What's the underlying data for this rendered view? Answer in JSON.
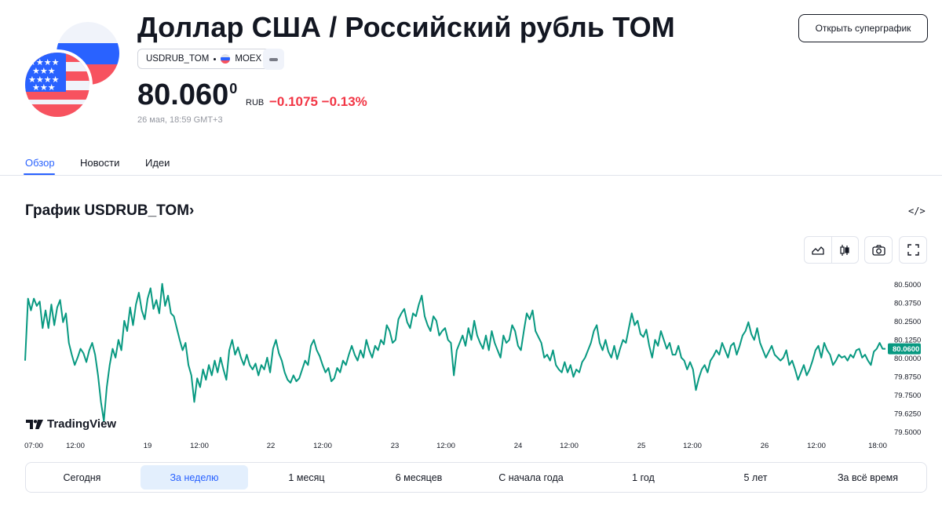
{
  "header": {
    "title": "Доллар США / Российский рубль TOM",
    "symbol": "USDRUB_TOM",
    "exchange": "MOEX",
    "flags": [
      "us-flag-icon",
      "ru-flag-icon"
    ],
    "price_main": "80.060",
    "price_sup": "0",
    "currency": "RUB",
    "change": "−0.1075",
    "change_pct": "−0.13%",
    "change_color": "#f23645",
    "timestamp": "26 мая, 18:59 GMT+3",
    "open_superchart_label": "Открыть суперграфик"
  },
  "tabs": [
    {
      "label": "Обзор",
      "active": true
    },
    {
      "label": "Новости",
      "active": false
    },
    {
      "label": "Идеи",
      "active": false
    }
  ],
  "chart_section": {
    "title": "График USDRUB_TOM›",
    "embed_icon": "</>",
    "tools": [
      "area-chart-icon",
      "candles-icon",
      "camera-icon",
      "fullscreen-icon"
    ],
    "logo_text": "TradingView",
    "range_buttons": [
      {
        "label": "Сегодня",
        "active": false
      },
      {
        "label": "За неделю",
        "active": true
      },
      {
        "label": "1 месяц",
        "active": false
      },
      {
        "label": "6 месяцев",
        "active": false
      },
      {
        "label": "С начала года",
        "active": false
      },
      {
        "label": "1 год",
        "active": false
      },
      {
        "label": "5 лет",
        "active": false
      },
      {
        "label": "За всё время",
        "active": false
      }
    ]
  },
  "chart_data": {
    "type": "line",
    "color": "#089981",
    "x_labels": [
      "07:00",
      "12:00",
      "19",
      "12:00",
      "22",
      "12:00",
      "23",
      "12:00",
      "24",
      "12:00",
      "25",
      "12:00",
      "26",
      "12:00",
      "18:00"
    ],
    "y_ticks": [
      "80.5000",
      "80.3750",
      "80.2500",
      "80.1250",
      "80.0000",
      "79.8750",
      "79.7500",
      "79.6250",
      "79.5000"
    ],
    "ylim": [
      79.5,
      80.52
    ],
    "last_value_label": "80.0600",
    "last_value": 80.06,
    "values": [
      79.98,
      80.4,
      80.32,
      80.4,
      80.35,
      80.38,
      80.2,
      80.32,
      80.2,
      80.36,
      80.22,
      80.34,
      80.39,
      80.24,
      80.3,
      80.1,
      80.02,
      79.95,
      80.0,
      80.06,
      80.03,
      79.97,
      80.05,
      80.1,
      80.02,
      79.88,
      79.7,
      79.57,
      79.8,
      79.95,
      80.06,
      80.0,
      80.12,
      80.05,
      80.25,
      80.18,
      80.34,
      80.22,
      80.36,
      80.44,
      80.32,
      80.26,
      80.4,
      80.47,
      80.33,
      80.39,
      80.3,
      80.5,
      80.35,
      80.42,
      80.3,
      80.28,
      80.2,
      80.12,
      80.05,
      80.1,
      79.95,
      79.88,
      79.7,
      79.86,
      79.8,
      79.92,
      79.85,
      79.95,
      79.88,
      79.98,
      79.9,
      80.0,
      79.92,
      79.85,
      80.05,
      80.12,
      80.02,
      80.07,
      80.0,
      79.95,
      80.02,
      79.95,
      79.92,
      79.96,
      79.88,
      79.95,
      79.92,
      80.0,
      79.9,
      80.06,
      80.12,
      80.03,
      79.98,
      79.9,
      79.85,
      79.83,
      79.88,
      79.84,
      79.86,
      79.92,
      79.98,
      79.95,
      80.08,
      80.12,
      80.05,
      80.01,
      79.95,
      79.9,
      79.93,
      79.84,
      79.86,
      79.93,
      79.9,
      79.98,
      79.95,
      80.02,
      80.08,
      80.02,
      79.98,
      80.05,
      80.0,
      80.12,
      80.05,
      80.0,
      80.08,
      80.05,
      80.12,
      80.09,
      80.22,
      80.18,
      80.1,
      80.12,
      80.26,
      80.3,
      80.33,
      80.24,
      80.2,
      80.3,
      80.28,
      80.36,
      80.42,
      80.28,
      80.22,
      80.18,
      80.28,
      80.25,
      80.15,
      80.18,
      80.2,
      80.12,
      80.1,
      79.88,
      80.05,
      80.1,
      80.15,
      80.08,
      80.2,
      80.12,
      80.25,
      80.15,
      80.1,
      80.06,
      80.15,
      80.05,
      80.18,
      80.1,
      80.05,
      80.0,
      80.15,
      80.1,
      80.12,
      80.22,
      80.18,
      80.08,
      80.05,
      80.18,
      80.3,
      80.26,
      80.32,
      80.18,
      80.14,
      80.1,
      80.0,
      80.02,
      79.98,
      80.05,
      79.95,
      79.92,
      79.9,
      79.97,
      79.9,
      79.95,
      79.87,
      79.92,
      79.9,
      79.97,
      80.0,
      80.05,
      80.1,
      80.18,
      80.22,
      80.1,
      80.05,
      80.12,
      80.04,
      80.0,
      80.08,
      79.99,
      80.06,
      80.12,
      80.1,
      80.2,
      80.3,
      80.22,
      80.25,
      80.16,
      80.14,
      80.19,
      80.08,
      80.0,
      80.12,
      80.08,
      80.18,
      80.12,
      80.06,
      80.1,
      80.02,
      80.02,
      80.08,
      80.0,
      79.98,
      79.92,
      79.97,
      79.92,
      79.78,
      79.86,
      79.92,
      79.95,
      79.9,
      79.98,
      80.01,
      80.05,
      80.02,
      80.1,
      80.05,
      80.0,
      80.08,
      80.1,
      80.02,
      80.08,
      80.15,
      80.18,
      80.24,
      80.16,
      80.12,
      80.2,
      80.1,
      80.05,
      80.0,
      80.04,
      80.08,
      80.02,
      80.0,
      79.98,
      80.0,
      80.05,
      79.95,
      79.98,
      79.92,
      79.85,
      79.9,
      79.95,
      79.88,
      79.92,
      79.98,
      80.05,
      80.08,
      80.0,
      80.1,
      80.05,
      80.02,
      79.95,
      79.98,
      80.02,
      80.0,
      80.01,
      79.98,
      80.02,
      80.0,
      80.05,
      80.06,
      80.0,
      80.02,
      79.98,
      79.95,
      80.04,
      80.06,
      80.1,
      80.06,
      80.06
    ]
  }
}
